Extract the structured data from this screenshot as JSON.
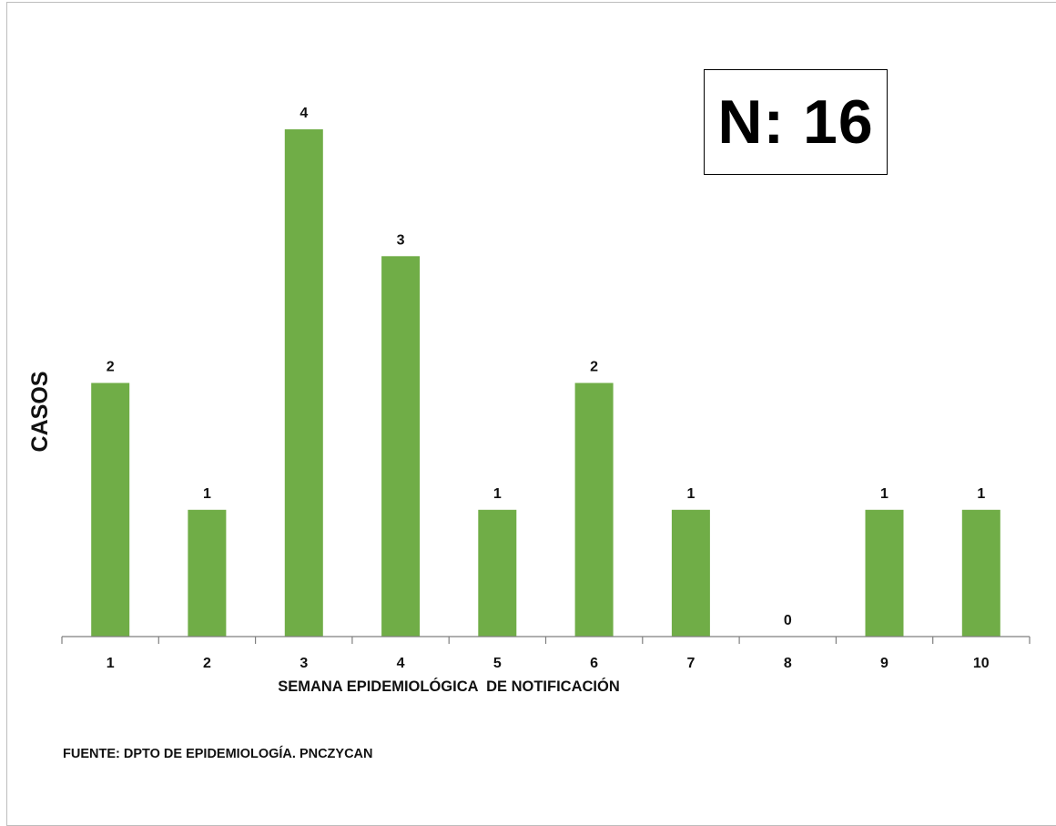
{
  "chart_data": {
    "type": "bar",
    "categories": [
      "1",
      "2",
      "3",
      "4",
      "5",
      "6",
      "7",
      "8",
      "9",
      "10"
    ],
    "values": [
      2,
      1,
      4,
      3,
      1,
      2,
      1,
      0,
      1,
      1
    ],
    "xlabel": "SEMANA EPIDEMIOLÓGICA  DE NOTIFICACIÓN",
    "ylabel": "CASOS",
    "ylim": [
      0,
      4
    ],
    "grid": false,
    "legend": "none",
    "bar_color": "#70ad47",
    "data_labels": true
  },
  "total_label": "N: 16",
  "source": "FUENTE: DPTO DE EPIDEMIOLOGÍA. PNCZYCAN"
}
